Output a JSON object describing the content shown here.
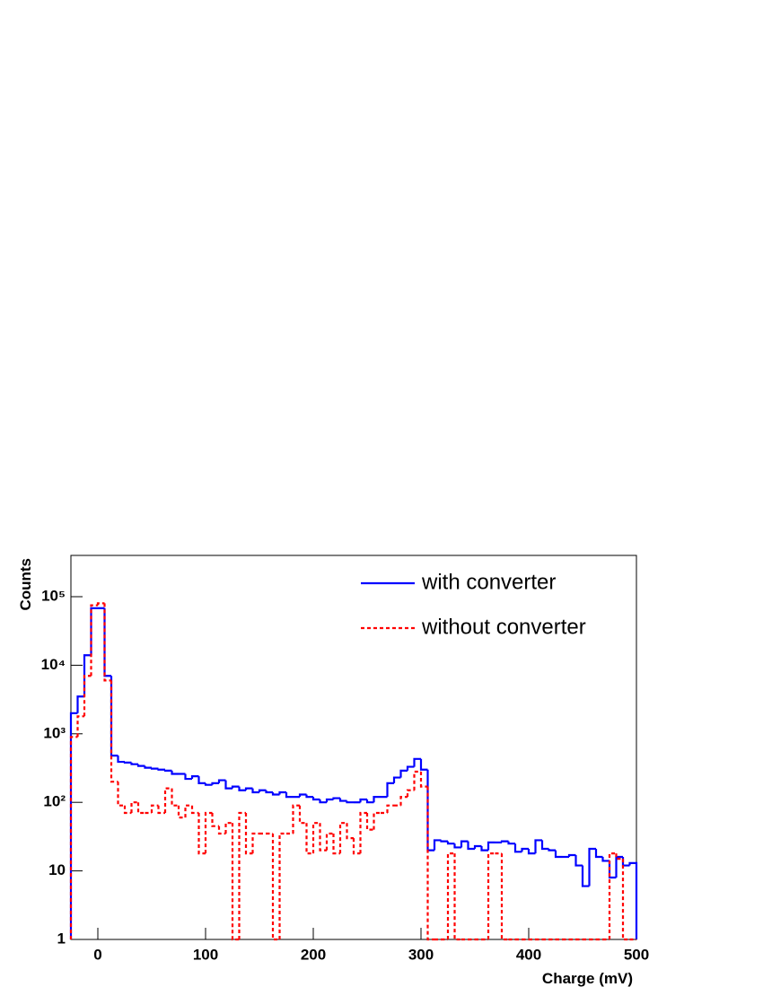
{
  "chart_data": {
    "type": "histogram",
    "x_label": "Charge (mV)",
    "y_label": "Counts",
    "bins": [
      -25,
      -18.75,
      -12.5,
      -6.25,
      0,
      6.25,
      12.5,
      18.75,
      25,
      31.25,
      37.5,
      43.75,
      50,
      56.25,
      62.5,
      68.75,
      75,
      81.25,
      87.5,
      93.75,
      100,
      106.25,
      112.5,
      118.75,
      125,
      131.25,
      137.5,
      143.75,
      150,
      156.25,
      162.5,
      168.75,
      175,
      181.25,
      187.5,
      193.75,
      200,
      206.25,
      212.5,
      218.75,
      225,
      231.25,
      237.5,
      243.75,
      250,
      256.25,
      262.5,
      268.75,
      275,
      281.25,
      287.5,
      293.75,
      300,
      306.25,
      312.5,
      318.75,
      325,
      331.25,
      337.5,
      343.75,
      350,
      356.25,
      362.5,
      368.75,
      375,
      381.25,
      387.5,
      393.75,
      400,
      406.25,
      412.5,
      418.75,
      425,
      431.25,
      437.5,
      443.75,
      450,
      456.25,
      462.5,
      468.75,
      475,
      481.25,
      487.5,
      493.75,
      500
    ],
    "series": [
      {
        "name": "with converter",
        "color": "#0000ff",
        "line_style": "solid",
        "values": [
          2000,
          3500,
          14000,
          68000,
          68000,
          7000,
          480,
          390,
          380,
          360,
          340,
          320,
          310,
          300,
          290,
          260,
          260,
          220,
          240,
          190,
          180,
          190,
          210,
          160,
          170,
          150,
          160,
          140,
          150,
          140,
          130,
          140,
          120,
          120,
          130,
          120,
          110,
          100,
          110,
          115,
          105,
          100,
          100,
          110,
          100,
          120,
          120,
          190,
          230,
          290,
          330,
          430,
          300,
          20,
          28,
          27,
          25,
          22,
          27,
          21,
          23,
          20,
          26,
          26,
          27,
          25,
          19,
          21,
          18,
          28,
          21,
          20,
          16,
          16,
          17,
          12,
          6,
          21,
          16,
          14,
          8,
          16,
          12,
          13
        ]
      },
      {
        "name": "without converter",
        "color": "#ff0000",
        "line_style": "dashed",
        "values": [
          900,
          1800,
          7000,
          75000,
          80000,
          6000,
          200,
          90,
          70,
          100,
          70,
          70,
          90,
          70,
          160,
          90,
          60,
          90,
          70,
          18,
          70,
          45,
          35,
          50,
          0,
          70,
          18,
          35,
          35,
          35,
          0,
          35,
          35,
          90,
          50,
          18,
          50,
          20,
          35,
          18,
          50,
          30,
          18,
          70,
          40,
          70,
          70,
          90,
          90,
          120,
          150,
          280,
          170,
          0,
          0,
          0,
          18,
          0,
          0,
          0,
          0,
          0,
          18,
          18,
          0,
          0,
          0,
          0,
          0,
          0,
          0,
          0,
          0,
          0,
          0,
          0,
          0,
          0,
          0,
          0,
          18,
          15,
          0,
          0
        ]
      }
    ],
    "xlim": [
      -25,
      500
    ],
    "ylim": [
      1,
      400000
    ],
    "log_y": true,
    "xticks": [
      0,
      100,
      200,
      300,
      400,
      500
    ],
    "yticks": [
      1,
      10,
      {
        "value": 100,
        "label": "10²"
      },
      {
        "value": 1000,
        "label": "10³"
      },
      {
        "value": 10000,
        "label": "10⁴"
      },
      {
        "value": 100000,
        "label": "10⁵"
      }
    ],
    "legend": "upper right"
  }
}
